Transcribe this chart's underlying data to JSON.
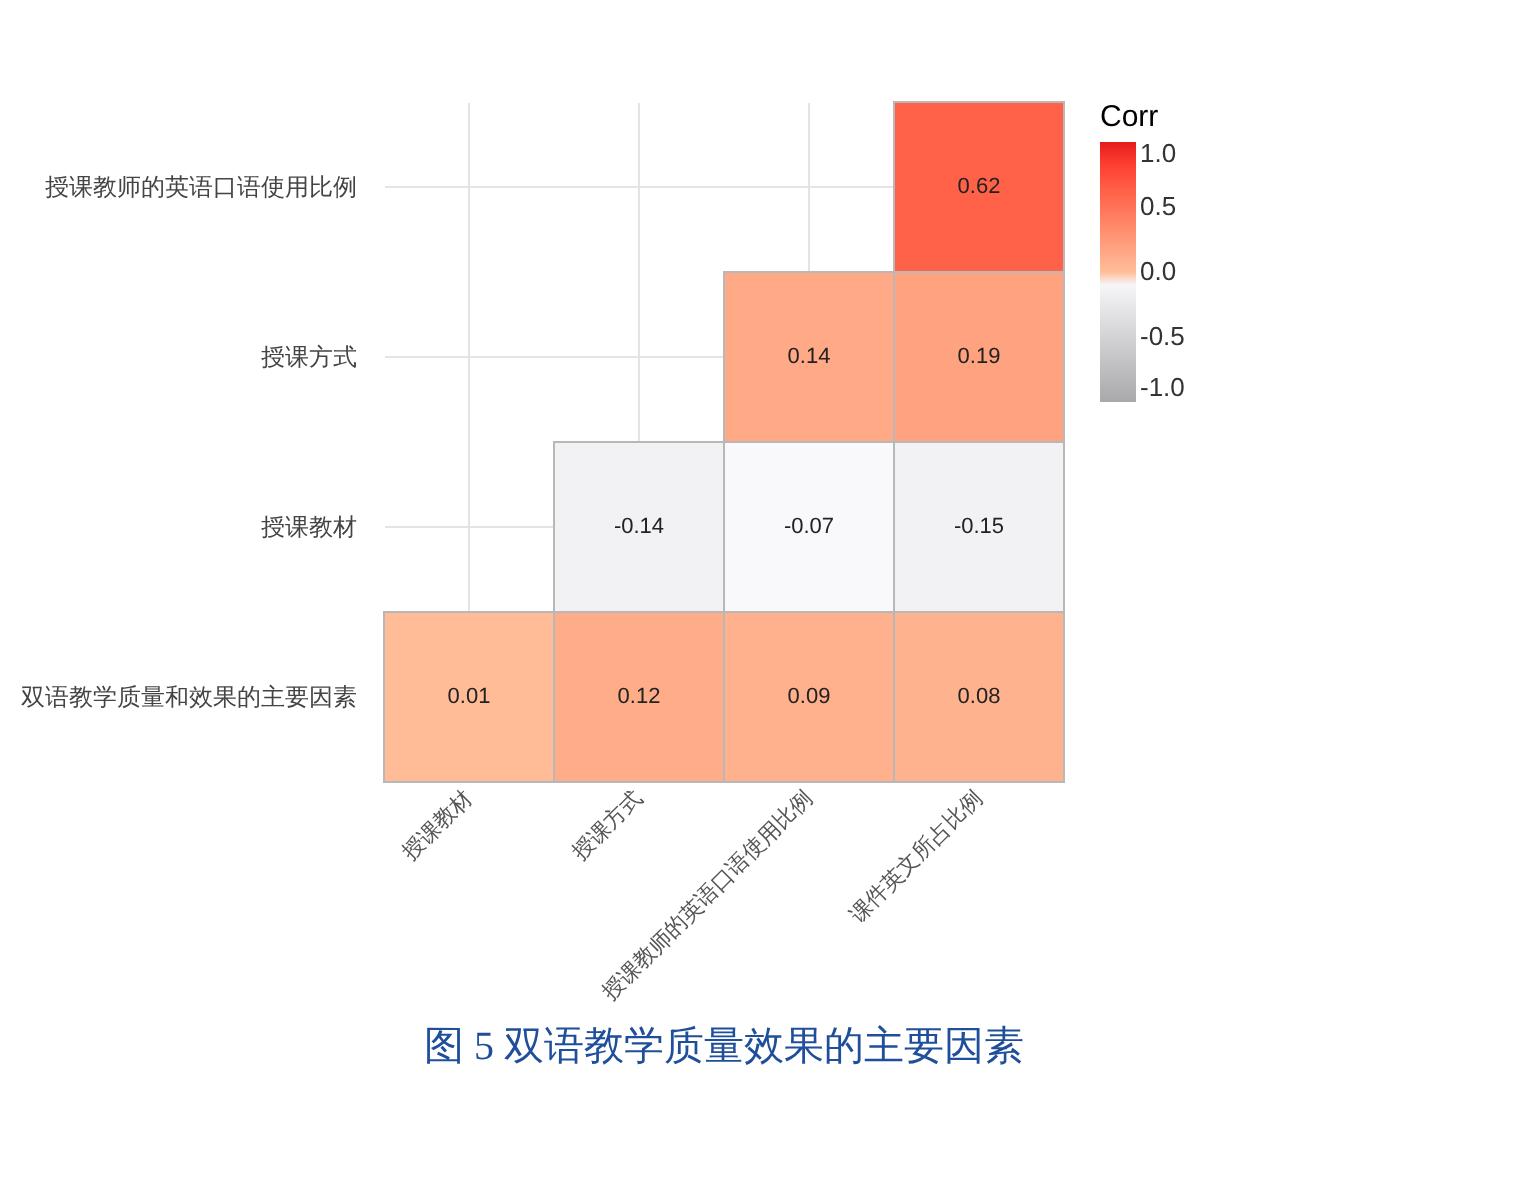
{
  "chart_data": {
    "type": "heatmap",
    "title": "图 5 双语教学质量效果的主要因素",
    "categories": [
      "授课教材",
      "授课方式",
      "授课教师的英语口语使用比例",
      "课件英文所占比例"
    ],
    "y_categories": [
      "授课教师的英语口语使用比例",
      "授课方式",
      "授课教材",
      "双语教学质量和效果的主要因素"
    ],
    "cells": [
      [
        null,
        null,
        null,
        0.62
      ],
      [
        null,
        null,
        0.14,
        0.19
      ],
      [
        null,
        -0.14,
        -0.07,
        -0.15
      ],
      [
        0.01,
        0.12,
        0.09,
        0.08
      ]
    ],
    "data_labels": true,
    "legend_title": "Corr",
    "grid": true,
    "clim": [
      -1,
      1
    ],
    "cticks": [
      {
        "value": -1,
        "label": "-1.0"
      },
      {
        "value": -0.5,
        "label": "-0.5"
      },
      {
        "value": 0,
        "label": "0.0"
      },
      {
        "value": 0.5,
        "label": "0.5"
      },
      {
        "value": 1,
        "label": "1.0"
      }
    ]
  }
}
